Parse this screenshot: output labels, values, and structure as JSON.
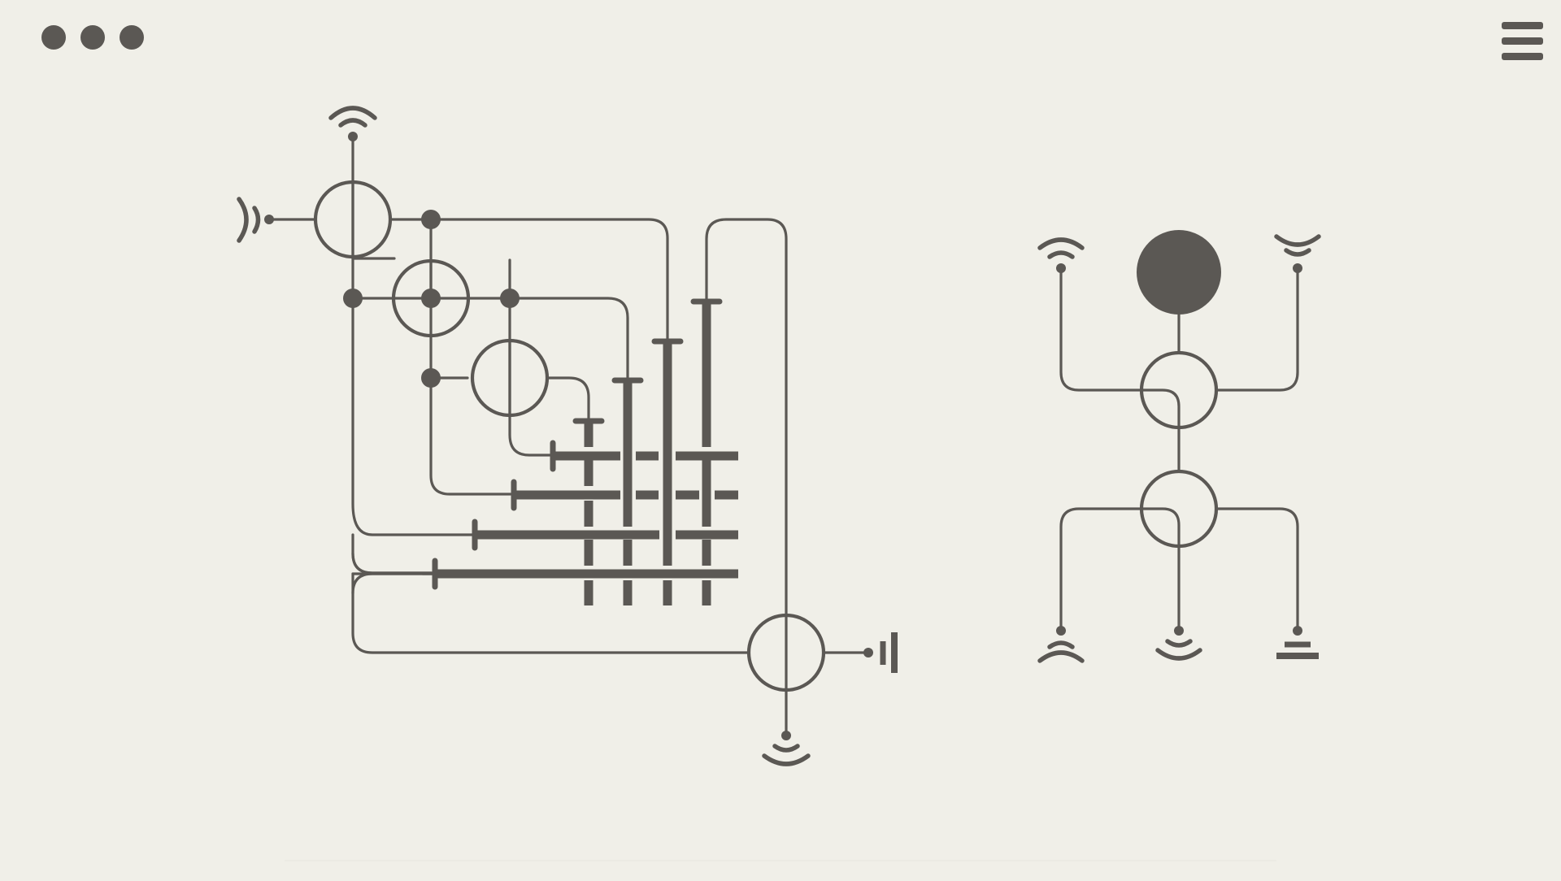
{
  "app": {
    "title": "",
    "background": "#f0efe8",
    "ink": "#5b5854"
  },
  "toolbar": {
    "options_icon": "three-dots-icon",
    "menu_icon": "hamburger-menu-icon"
  },
  "puzzle": {
    "main_circuit": {
      "nodes": 5,
      "signal_icons": [
        "signal-left-icon",
        "signal-top-icon",
        "signal-bottom-icon",
        "plug-right-icon"
      ]
    },
    "target_figure": {
      "core_node": "filled-node",
      "terminal_icons": [
        "signal-up-icon",
        "signal-down-icon",
        "signal-down-icon",
        "signal-up-icon",
        "signal-down-icon",
        "ground-icon"
      ]
    }
  }
}
